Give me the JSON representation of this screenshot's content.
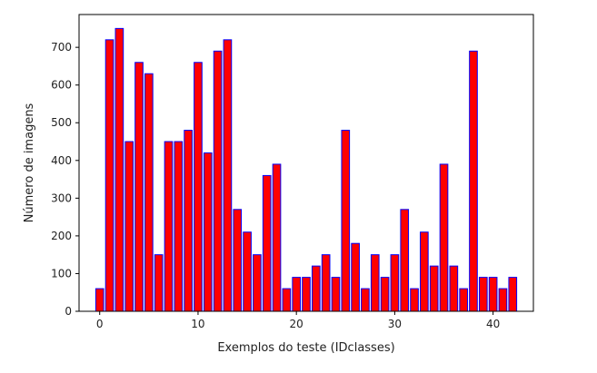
{
  "chart_data": {
    "type": "bar",
    "title": "",
    "xlabel": "Exemplos do teste (IDclasses)",
    "ylabel": "Número de imagens",
    "x": [
      0,
      1,
      2,
      3,
      4,
      5,
      6,
      7,
      8,
      9,
      10,
      11,
      12,
      13,
      14,
      15,
      16,
      17,
      18,
      19,
      20,
      21,
      22,
      23,
      24,
      25,
      26,
      27,
      28,
      29,
      30,
      31,
      32,
      33,
      34,
      35,
      36,
      37,
      38,
      39,
      40,
      41,
      42
    ],
    "values": [
      60,
      720,
      750,
      450,
      660,
      630,
      150,
      450,
      450,
      480,
      660,
      420,
      690,
      720,
      270,
      210,
      150,
      360,
      390,
      60,
      90,
      90,
      120,
      150,
      90,
      480,
      180,
      60,
      150,
      90,
      150,
      270,
      60,
      210,
      120,
      390,
      120,
      60,
      690,
      90,
      90,
      60,
      90
    ],
    "xlim": [
      -2.1,
      44.1
    ],
    "ylim": [
      0,
      787
    ],
    "xticks": [
      0,
      10,
      20,
      30,
      40
    ],
    "xtick_labels": [
      "0",
      "10",
      "20",
      "30",
      "40"
    ],
    "yticks": [
      0,
      100,
      200,
      300,
      400,
      500,
      600,
      700
    ],
    "ytick_labels": [
      "0",
      "100",
      "200",
      "300",
      "400",
      "500",
      "600",
      "700"
    ],
    "grid": false,
    "colors": {
      "bar_fill": "#ff0000",
      "bar_edge": "#0000ff",
      "axes": "#000000"
    }
  }
}
